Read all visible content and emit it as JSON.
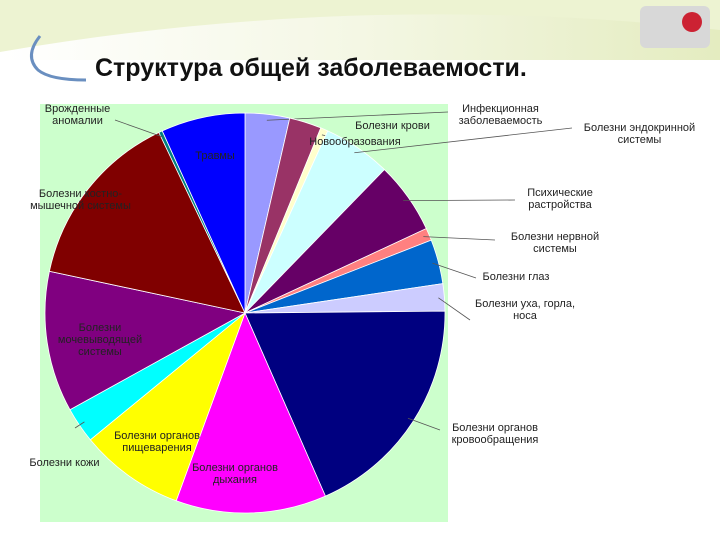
{
  "chart_data": {
    "type": "pie",
    "title": "Структура общей заболеваемости.",
    "categories": [
      "Инфекционная заболеваемость",
      "Новообразования",
      "Болезни крови",
      "Болезни эндокринной системы",
      "Психические растройства",
      "Болезни нервной системы",
      "Болезни глаз",
      "Болезни уха, горла, носа",
      "Болезни органов кровообращения",
      "Болезни органов дыхания",
      "Болезни органов пищеварения",
      "Болезни кожи",
      "Болезни мочевыводящей системы",
      "Болезни костно-мышечной системы",
      "Врожденные аномалии",
      "Травмы"
    ],
    "values": [
      3.6,
      2.6,
      0.6,
      5.5,
      5.8,
      1.0,
      3.6,
      2.2,
      18.6,
      12.2,
      8.5,
      2.9,
      11.4,
      14.6,
      0.3,
      6.8
    ],
    "colors": [
      "#9999ff",
      "#993366",
      "#ffffcc",
      "#ccffff",
      "#660066",
      "#ff8080",
      "#0066cc",
      "#ccccff",
      "#000080",
      "#ff00ff",
      "#ffff00",
      "#00ffff",
      "#800080",
      "#800000",
      "#008080",
      "#0000ff"
    ]
  }
}
